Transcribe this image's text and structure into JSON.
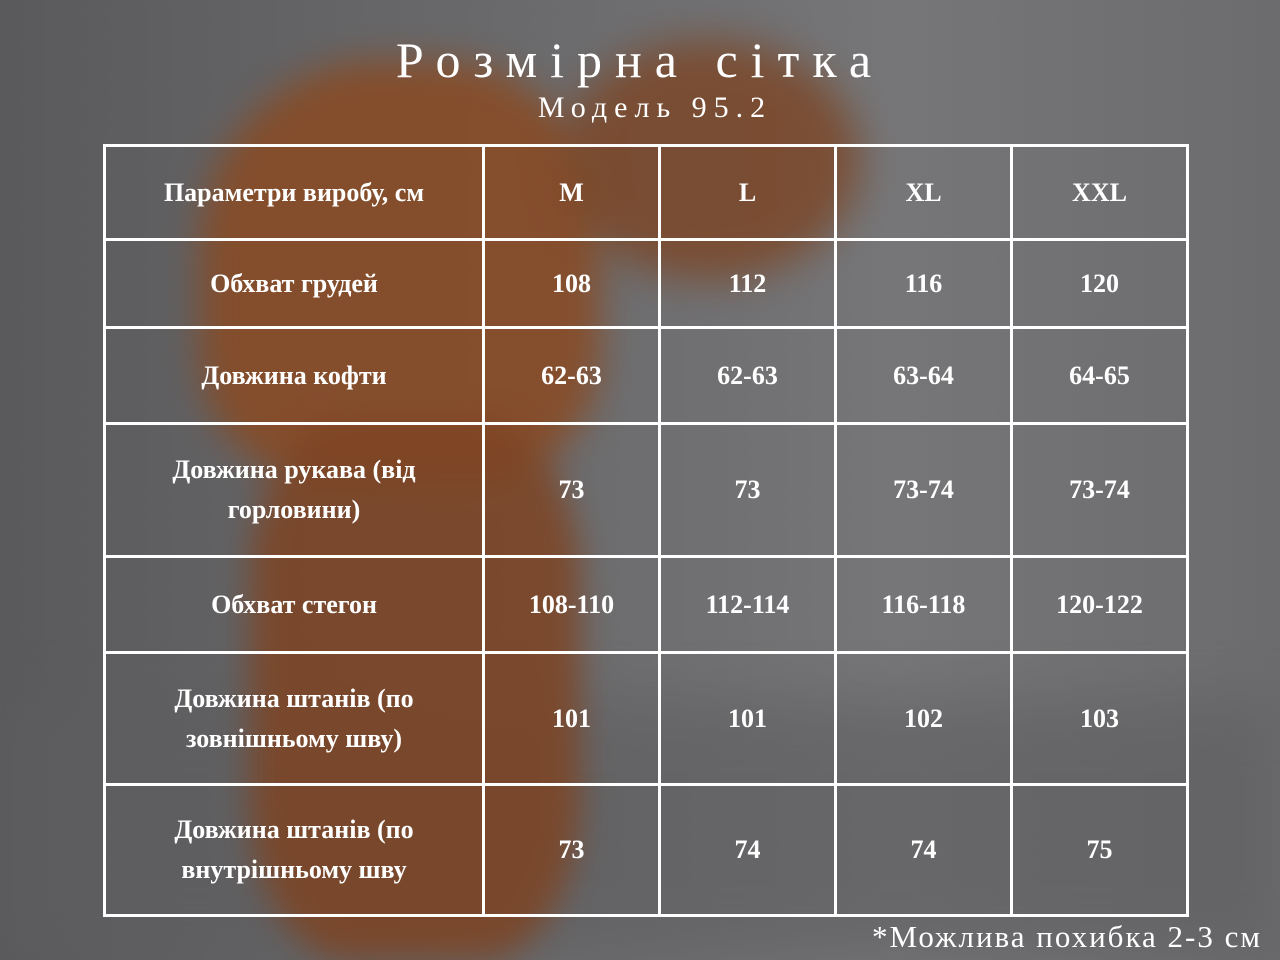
{
  "title": "Розмірна сітка",
  "subtitle": "Модель 95.2",
  "table": {
    "headers": [
      "Параметри виробу, см",
      "M",
      "L",
      "XL",
      "XXL"
    ],
    "rows": [
      {
        "param": "Обхват грудей",
        "values": [
          "108",
          "112",
          "116",
          "120"
        ]
      },
      {
        "param": "Довжина кофти",
        "values": [
          "62-63",
          "62-63",
          "63-64",
          "64-65"
        ]
      },
      {
        "param": "Довжина рукава (від горловини)",
        "values": [
          "73",
          "73",
          "73-74",
          "73-74"
        ]
      },
      {
        "param": "Обхват стегон",
        "values": [
          "108-110",
          "112-114",
          "116-118",
          "120-122"
        ]
      },
      {
        "param": "Довжина штанів (по зовнішньому шву)",
        "values": [
          "101",
          "101",
          "102",
          "103"
        ]
      },
      {
        "param": "Довжина штанів (по внутрішньому шву",
        "values": [
          "73",
          "74",
          "74",
          "75"
        ]
      }
    ]
  },
  "note": "*Можлива похибка 2-3 см"
}
